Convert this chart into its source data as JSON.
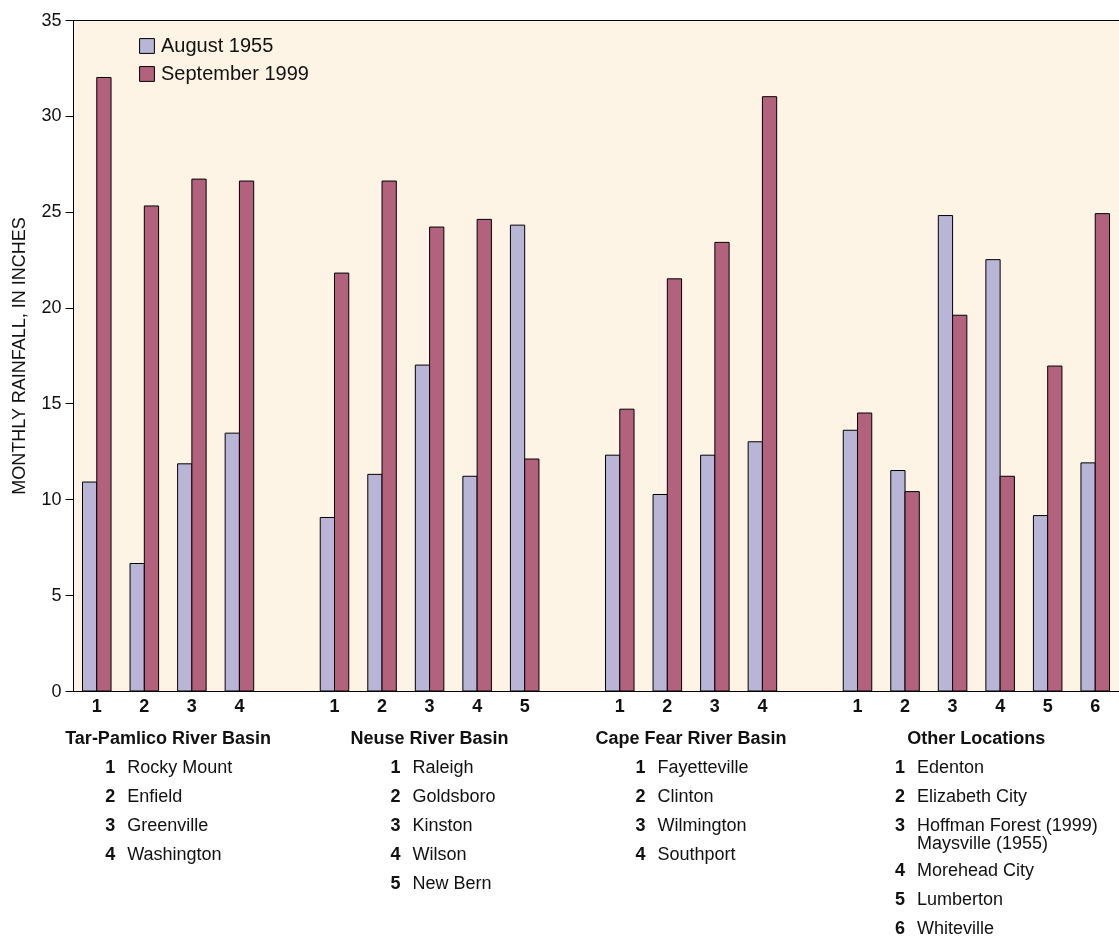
{
  "chart_data": {
    "type": "bar",
    "ylabel": "MONTHLY RAINFALL, IN INCHES",
    "categories": [
      "1",
      "2",
      "3",
      "4",
      null,
      "1",
      "2",
      "3",
      "4",
      "5",
      null,
      "1",
      "2",
      "3",
      "4",
      null,
      "1",
      "2",
      "3",
      "4",
      "5",
      "6"
    ],
    "series": [
      {
        "name": "August 1955",
        "color": "#b8b5d6",
        "values": [
          10.9,
          6.65,
          11.85,
          13.45,
          null,
          9.05,
          11.3,
          17.0,
          11.2,
          24.3,
          null,
          12.3,
          10.25,
          12.3,
          13.0,
          null,
          13.6,
          11.5,
          24.8,
          22.5,
          9.15,
          11.9
        ]
      },
      {
        "name": "September 1999",
        "color": "#b3627e",
        "values": [
          32.0,
          25.3,
          26.7,
          26.6,
          null,
          21.8,
          26.6,
          24.2,
          24.6,
          12.1,
          null,
          14.7,
          21.5,
          23.4,
          31.0,
          null,
          14.5,
          10.4,
          19.6,
          11.2,
          16.95,
          24.9
        ]
      }
    ],
    "ylim": [
      0,
      35
    ],
    "yticks": [
      0,
      5,
      10,
      15,
      20,
      25,
      30,
      35
    ],
    "grid": false,
    "legend": "top left",
    "annotations": [
      "Tar-Pamlico River Basin\n1 Rocky Mount\n2 Enfield\n3 Greenville\n4 Washington",
      "Neuse River Basin\n1 Raleigh\n2 Goldsboro\n3 Kinston\n4 Wilson\n5 New Bern",
      "Cape Fear River Basin\n1 Fayetteville\n2 Clinton\n3 Wilmington\n4 Southport",
      "Other Locations\n1 Edenton\n2 Elizabeth City\n3 Hoffman Forest (1999)\nMaysville (1955)\n4 Morehead City\n5 Lumberton\n6 Whiteville"
    ]
  }
}
